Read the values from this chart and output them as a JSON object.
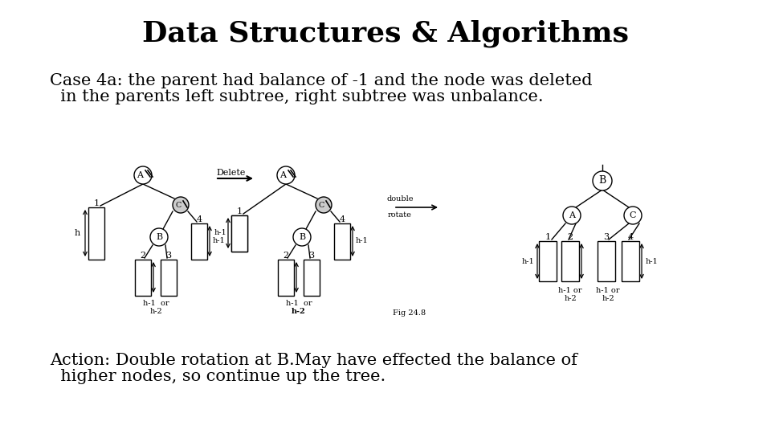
{
  "title": "Data Structures & Algorithms",
  "title_fontsize": 26,
  "title_fontweight": "bold",
  "title_fontfamily": "DejaVu Serif",
  "body_fontsize": 15,
  "body_fontfamily": "DejaVu Serif",
  "case_line1": "Case 4a: the parent had balance of -1 and the node was deleted",
  "case_line2": "  in the parents left subtree, right subtree was unbalance.",
  "action_line1": "Action: Double rotation at B.May have effected the balance of",
  "action_line2": "  higher nodes, so continue up the tree.",
  "bg_color": "#ffffff",
  "text_color": "#000000"
}
